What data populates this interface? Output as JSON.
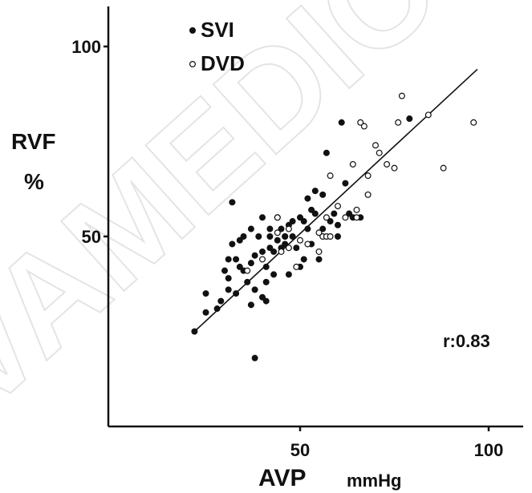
{
  "chart_data": {
    "type": "scatter",
    "title": "",
    "xlabel": "AVP",
    "xunit": "mmHg",
    "ylabel": "RVF",
    "yunit": "%",
    "xlim": [
      0,
      110
    ],
    "ylim": [
      0,
      110
    ],
    "xticks": [
      50,
      100
    ],
    "yticks": [
      50,
      100
    ],
    "grid": false,
    "legend_position": "top-left",
    "annotation": "r:0.83",
    "regression_line": {
      "x": [
        22,
        97
      ],
      "y": [
        25,
        94
      ]
    },
    "watermark": "VAMEDIC",
    "series": [
      {
        "name": "SVI",
        "marker": "filled",
        "color": "#111111",
        "points": [
          [
            22,
            25
          ],
          [
            25,
            30
          ],
          [
            25,
            35
          ],
          [
            28,
            31
          ],
          [
            29,
            33
          ],
          [
            31,
            36
          ],
          [
            31,
            44
          ],
          [
            31,
            39
          ],
          [
            32,
            48
          ],
          [
            32,
            59
          ],
          [
            33,
            44
          ],
          [
            33,
            35
          ],
          [
            34,
            42
          ],
          [
            34,
            49
          ],
          [
            35,
            50
          ],
          [
            36,
            38
          ],
          [
            37,
            52
          ],
          [
            37,
            43
          ],
          [
            37,
            32
          ],
          [
            38,
            45
          ],
          [
            38,
            18
          ],
          [
            38,
            36
          ],
          [
            39,
            50
          ],
          [
            40,
            46
          ],
          [
            40,
            55
          ],
          [
            40,
            34
          ],
          [
            41,
            42
          ],
          [
            41,
            38
          ],
          [
            42,
            47
          ],
          [
            42,
            50
          ],
          [
            42,
            52
          ],
          [
            43,
            46
          ],
          [
            43,
            40
          ],
          [
            44,
            49
          ],
          [
            44,
            55
          ],
          [
            45,
            52
          ],
          [
            45,
            47
          ],
          [
            46,
            50
          ],
          [
            46,
            50
          ],
          [
            46,
            48
          ],
          [
            47,
            53
          ],
          [
            47,
            40
          ],
          [
            48,
            54
          ],
          [
            48,
            50
          ],
          [
            49,
            47
          ],
          [
            50,
            42
          ],
          [
            50,
            55
          ],
          [
            51,
            44
          ],
          [
            51,
            54
          ],
          [
            52,
            60
          ],
          [
            52,
            52
          ],
          [
            53,
            57
          ],
          [
            53,
            48
          ],
          [
            54,
            62
          ],
          [
            54,
            56
          ],
          [
            55,
            44
          ],
          [
            56,
            61
          ],
          [
            56,
            52
          ],
          [
            57,
            72
          ],
          [
            58,
            54
          ],
          [
            59,
            56
          ],
          [
            60,
            53
          ],
          [
            60,
            50
          ],
          [
            61,
            80
          ],
          [
            62,
            64
          ],
          [
            63,
            56
          ],
          [
            64,
            55
          ],
          [
            66,
            55
          ],
          [
            79,
            81
          ],
          [
            41,
            33
          ],
          [
            35,
            41
          ],
          [
            30,
            41
          ]
        ]
      },
      {
        "name": "DVD",
        "marker": "open",
        "color": "#111111",
        "points": [
          [
            36,
            41
          ],
          [
            40,
            44
          ],
          [
            44,
            55
          ],
          [
            45,
            46
          ],
          [
            47,
            47
          ],
          [
            47,
            52
          ],
          [
            49,
            42
          ],
          [
            50,
            49
          ],
          [
            52,
            48
          ],
          [
            55,
            51
          ],
          [
            56,
            50
          ],
          [
            57,
            50
          ],
          [
            58,
            50
          ],
          [
            57,
            55
          ],
          [
            58,
            66
          ],
          [
            60,
            58
          ],
          [
            62,
            55
          ],
          [
            64,
            69
          ],
          [
            65,
            57
          ],
          [
            65,
            55
          ],
          [
            66,
            80
          ],
          [
            67,
            79
          ],
          [
            68,
            66
          ],
          [
            68,
            61
          ],
          [
            70,
            74
          ],
          [
            71,
            72
          ],
          [
            73,
            69
          ],
          [
            75,
            68
          ],
          [
            76,
            80
          ],
          [
            77,
            87
          ],
          [
            84,
            82
          ],
          [
            88,
            68
          ],
          [
            96,
            80
          ],
          [
            44,
            51
          ],
          [
            55,
            46
          ]
        ]
      }
    ]
  }
}
